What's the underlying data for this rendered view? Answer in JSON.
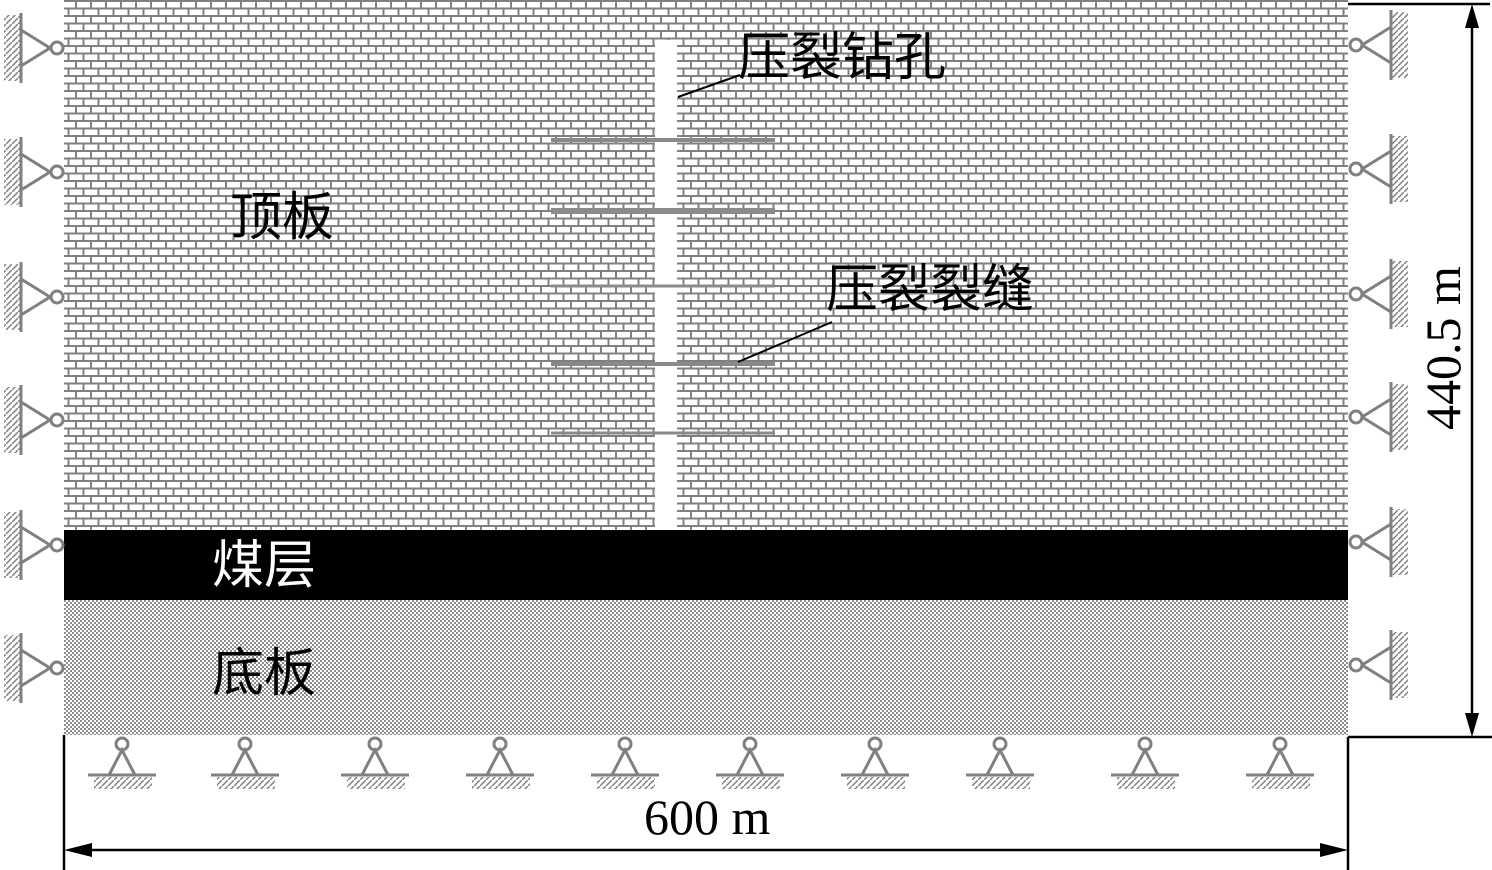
{
  "labels": {
    "roof": "顶板",
    "coal_seam": "煤层",
    "floor": "底板",
    "borehole": "压裂钻孔",
    "fractures": "压裂裂缝"
  },
  "dimensions": {
    "width": "600 m",
    "height": "440.5 m"
  },
  "colors": {
    "brick_line": "#808080",
    "coal": "#000000",
    "fracture": "#8a8a8a",
    "support": "#808080"
  },
  "fracture_count": 5,
  "left_support_count": 6,
  "right_support_count": 6,
  "bottom_support_count": 10
}
